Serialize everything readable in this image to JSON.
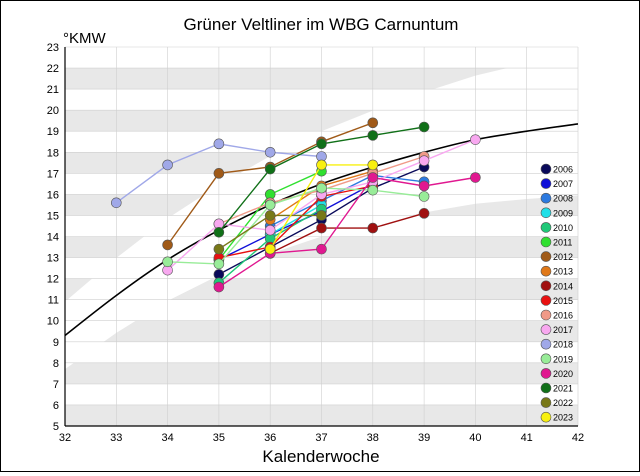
{
  "chart_data": {
    "type": "line",
    "title": "Grüner Veltliner im WBG Carnuntum",
    "xlabel": "Kalenderwoche",
    "ylabel": "°KMW",
    "xlim": [
      32,
      42
    ],
    "ylim": [
      5,
      23
    ],
    "x_ticks": [
      "32",
      "33",
      "34",
      "35",
      "36",
      "37",
      "38",
      "39",
      "40",
      "41",
      "42"
    ],
    "y_ticks": [
      "5",
      "6",
      "7",
      "8",
      "9",
      "10",
      "11",
      "12",
      "13",
      "14",
      "15",
      "16",
      "17",
      "18",
      "19",
      "20",
      "21",
      "22",
      "23"
    ],
    "grid": true,
    "legend_position": "right",
    "background_bands": "alternating light grey / white horizontal bands per integer °KMW; white corridor around the average curve",
    "average_curve": {
      "color": "#000000",
      "points": [
        [
          32,
          9.3
        ],
        [
          33,
          11.2
        ],
        [
          34,
          12.9
        ],
        [
          35,
          14.3
        ],
        [
          36,
          15.5
        ],
        [
          37,
          16.5
        ],
        [
          38,
          17.3
        ],
        [
          39,
          18.0
        ],
        [
          40,
          18.6
        ],
        [
          41,
          19.0
        ],
        [
          42,
          19.35
        ]
      ]
    },
    "series": [
      {
        "name": "2006",
        "color": "#0a0a5a",
        "points": [
          [
            35,
            12.2
          ],
          [
            36,
            13.5
          ],
          [
            37,
            14.8
          ],
          [
            38,
            16.3
          ],
          [
            39,
            17.3
          ]
        ]
      },
      {
        "name": "2007",
        "color": "#1010d8",
        "points": [
          [
            35,
            12.9
          ],
          [
            36,
            14.1
          ],
          [
            37,
            15.2
          ],
          [
            38,
            16.5
          ]
        ]
      },
      {
        "name": "2008",
        "color": "#2c7ae0",
        "points": [
          [
            36,
            14.5
          ],
          [
            37,
            15.7
          ],
          [
            38,
            16.9
          ],
          [
            39,
            16.6
          ]
        ]
      },
      {
        "name": "2009",
        "color": "#20e0e8",
        "points": [
          [
            36,
            14.1
          ],
          [
            37,
            15.5
          ]
        ]
      },
      {
        "name": "2010",
        "color": "#20c878",
        "points": [
          [
            35,
            11.8
          ],
          [
            36,
            13.9
          ],
          [
            37,
            15.3
          ]
        ]
      },
      {
        "name": "2011",
        "color": "#30e030",
        "points": [
          [
            35,
            12.9
          ],
          [
            36,
            16.0
          ],
          [
            37,
            17.1
          ]
        ]
      },
      {
        "name": "2012",
        "color": "#a05a18",
        "points": [
          [
            34,
            13.6
          ],
          [
            35,
            17.0
          ],
          [
            36,
            17.3
          ],
          [
            37,
            18.5
          ],
          [
            38,
            19.4
          ]
        ]
      },
      {
        "name": "2013",
        "color": "#e07818",
        "points": [
          [
            36,
            14.8
          ],
          [
            37,
            16.4
          ],
          [
            38,
            17.1
          ]
        ]
      },
      {
        "name": "2014",
        "color": "#a01010",
        "points": [
          [
            36,
            13.2
          ],
          [
            37,
            14.4
          ],
          [
            38,
            14.4
          ],
          [
            39,
            15.1
          ]
        ]
      },
      {
        "name": "2015",
        "color": "#e81010",
        "points": [
          [
            35,
            13.0
          ],
          [
            36,
            13.5
          ],
          [
            37,
            15.9
          ],
          [
            38,
            16.4
          ]
        ]
      },
      {
        "name": "2016",
        "color": "#f09a88",
        "points": [
          [
            35,
            14.6
          ],
          [
            36,
            15.6
          ],
          [
            37,
            16.2
          ],
          [
            38,
            17.0
          ],
          [
            39,
            17.8
          ]
        ]
      },
      {
        "name": "2017",
        "color": "#f8a8f0",
        "points": [
          [
            34,
            12.4
          ],
          [
            35,
            14.6
          ],
          [
            36,
            14.3
          ],
          [
            37,
            16.0
          ],
          [
            38,
            16.6
          ],
          [
            39,
            17.6
          ],
          [
            40,
            18.6
          ]
        ]
      },
      {
        "name": "2018",
        "color": "#a0a8e8",
        "points": [
          [
            33,
            15.6
          ],
          [
            34,
            17.4
          ],
          [
            35,
            18.4
          ],
          [
            36,
            18.0
          ],
          [
            37,
            17.8
          ]
        ]
      },
      {
        "name": "2019",
        "color": "#98ec98",
        "points": [
          [
            34,
            12.8
          ],
          [
            35,
            12.7
          ],
          [
            36,
            15.5
          ],
          [
            37,
            16.3
          ],
          [
            38,
            16.2
          ],
          [
            39,
            15.9
          ]
        ]
      },
      {
        "name": "2020",
        "color": "#e01890",
        "points": [
          [
            35,
            11.6
          ],
          [
            36,
            13.2
          ],
          [
            37,
            13.4
          ],
          [
            38,
            16.8
          ],
          [
            39,
            16.4
          ],
          [
            40,
            16.8
          ]
        ]
      },
      {
        "name": "2021",
        "color": "#107018",
        "points": [
          [
            35,
            14.2
          ],
          [
            36,
            17.2
          ],
          [
            37,
            18.4
          ],
          [
            38,
            18.8
          ],
          [
            39,
            19.2
          ]
        ]
      },
      {
        "name": "2022",
        "color": "#787818",
        "points": [
          [
            35,
            13.4
          ],
          [
            36,
            15.0
          ],
          [
            37,
            15.0
          ]
        ]
      },
      {
        "name": "2023",
        "color": "#f8f010",
        "points": [
          [
            36,
            13.4
          ],
          [
            37,
            17.4
          ],
          [
            38,
            17.4
          ]
        ]
      }
    ]
  }
}
